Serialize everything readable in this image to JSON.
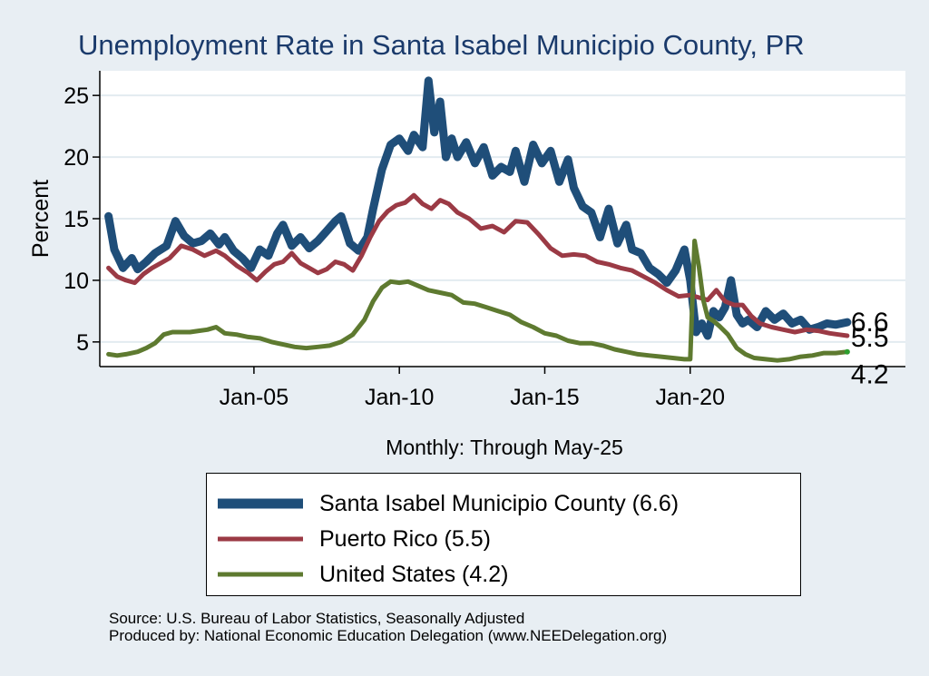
{
  "chart_data": {
    "type": "line",
    "title": "Unemployment Rate in Santa Isabel Municipio  County, PR",
    "ylabel": "Percent",
    "xlabel": "Monthly: Through May-25",
    "ylim": [
      3,
      27
    ],
    "yticks": [
      5,
      10,
      15,
      20,
      25
    ],
    "xticks": [
      {
        "label": "Jan-05",
        "x": 2005.0
      },
      {
        "label": "Jan-10",
        "x": 2010.0
      },
      {
        "label": "Jan-15",
        "x": 2015.0
      },
      {
        "label": "Jan-20",
        "x": 2020.0
      }
    ],
    "xlim": [
      1999.7,
      2027.4
    ],
    "grid": true,
    "series": [
      {
        "name": "Santa Isabel Municipio  County",
        "legend": "Santa Isabel Municipio  County (6.6)",
        "end_label": "6.6",
        "color": "#1f4e79",
        "x": [
          2000.0,
          2000.2,
          2000.5,
          2000.8,
          2001.0,
          2001.3,
          2001.6,
          2002.0,
          2002.3,
          2002.6,
          2002.9,
          2003.2,
          2003.5,
          2003.8,
          2004.0,
          2004.3,
          2004.6,
          2004.9,
          2005.2,
          2005.5,
          2005.8,
          2006.0,
          2006.3,
          2006.6,
          2006.9,
          2007.2,
          2007.5,
          2007.8,
          2008.0,
          2008.3,
          2008.6,
          2008.9,
          2009.1,
          2009.4,
          2009.7,
          2010.0,
          2010.3,
          2010.5,
          2010.8,
          2011.0,
          2011.2,
          2011.4,
          2011.6,
          2011.8,
          2012.0,
          2012.3,
          2012.6,
          2012.9,
          2013.2,
          2013.5,
          2013.8,
          2014.0,
          2014.3,
          2014.6,
          2014.9,
          2015.2,
          2015.5,
          2015.8,
          2016.0,
          2016.3,
          2016.6,
          2016.9,
          2017.2,
          2017.5,
          2017.8,
          2018.0,
          2018.3,
          2018.6,
          2018.9,
          2019.2,
          2019.5,
          2019.8,
          2020.0,
          2020.2,
          2020.4,
          2020.6,
          2020.8,
          2021.0,
          2021.2,
          2021.4,
          2021.6,
          2021.8,
          2022.0,
          2022.3,
          2022.6,
          2022.9,
          2023.2,
          2023.5,
          2023.8,
          2024.1,
          2024.4,
          2024.7,
          2025.0,
          2025.4
        ],
        "values": [
          15.2,
          12.5,
          11.0,
          11.8,
          10.9,
          11.5,
          12.2,
          12.8,
          14.8,
          13.6,
          13.0,
          13.2,
          13.8,
          12.9,
          13.5,
          12.4,
          11.8,
          11.0,
          12.5,
          12.0,
          13.8,
          14.5,
          12.8,
          13.5,
          12.6,
          13.2,
          14.0,
          14.8,
          15.2,
          13.0,
          12.4,
          13.5,
          15.8,
          19.0,
          21.0,
          21.5,
          20.5,
          21.8,
          20.8,
          26.2,
          22.0,
          24.5,
          20.0,
          21.5,
          20.0,
          21.2,
          19.5,
          20.8,
          18.5,
          19.2,
          18.8,
          20.5,
          18.0,
          21.0,
          19.5,
          20.5,
          18.0,
          19.8,
          17.5,
          16.0,
          15.5,
          13.5,
          15.8,
          13.0,
          14.5,
          12.5,
          12.2,
          11.0,
          10.5,
          9.8,
          10.8,
          12.5,
          10.0,
          5.8,
          6.5,
          5.5,
          7.5,
          7.0,
          7.8,
          10.0,
          7.2,
          6.5,
          6.8,
          6.2,
          7.5,
          6.8,
          7.3,
          6.5,
          6.8,
          6.0,
          6.2,
          6.5,
          6.4,
          6.6
        ]
      },
      {
        "name": "Puerto Rico",
        "legend": "Puerto Rico (5.5)",
        "end_label": "5.5",
        "color": "#9b3a45",
        "x": [
          2000.0,
          2000.3,
          2000.6,
          2000.9,
          2001.2,
          2001.5,
          2001.8,
          2002.1,
          2002.5,
          2002.9,
          2003.3,
          2003.7,
          2004.0,
          2004.4,
          2004.8,
          2005.1,
          2005.4,
          2005.7,
          2006.0,
          2006.3,
          2006.6,
          2006.9,
          2007.2,
          2007.5,
          2007.8,
          2008.1,
          2008.4,
          2008.7,
          2009.0,
          2009.3,
          2009.6,
          2009.9,
          2010.2,
          2010.5,
          2010.8,
          2011.1,
          2011.4,
          2011.7,
          2012.0,
          2012.4,
          2012.8,
          2013.2,
          2013.6,
          2014.0,
          2014.4,
          2014.8,
          2015.2,
          2015.6,
          2016.0,
          2016.4,
          2016.8,
          2017.2,
          2017.6,
          2018.0,
          2018.4,
          2018.8,
          2019.2,
          2019.6,
          2020.0,
          2020.3,
          2020.6,
          2020.9,
          2021.2,
          2021.5,
          2021.8,
          2022.1,
          2022.4,
          2022.8,
          2023.2,
          2023.6,
          2024.0,
          2024.4,
          2024.8,
          2025.1,
          2025.4
        ],
        "values": [
          11.0,
          10.3,
          10.0,
          9.8,
          10.5,
          11.0,
          11.4,
          11.8,
          12.8,
          12.5,
          12.0,
          12.4,
          12.0,
          11.2,
          10.6,
          10.0,
          10.7,
          11.3,
          11.5,
          12.2,
          11.4,
          11.0,
          10.6,
          10.9,
          11.5,
          11.3,
          10.8,
          12.0,
          13.5,
          14.8,
          15.6,
          16.1,
          16.3,
          16.9,
          16.2,
          15.8,
          16.5,
          16.2,
          15.5,
          15.0,
          14.2,
          14.4,
          13.9,
          14.8,
          14.7,
          13.7,
          12.6,
          12.0,
          12.1,
          12.0,
          11.5,
          11.3,
          11.0,
          10.8,
          10.3,
          9.8,
          9.2,
          8.7,
          8.8,
          8.6,
          8.4,
          9.2,
          8.3,
          8.0,
          8.0,
          7.1,
          6.5,
          6.2,
          6.0,
          5.8,
          6.0,
          5.9,
          5.7,
          5.6,
          5.5
        ]
      },
      {
        "name": "United States",
        "legend": "United States (4.2)",
        "end_label": "4.2",
        "color": "#5e7a30",
        "x": [
          2000.0,
          2000.3,
          2000.6,
          2001.0,
          2001.3,
          2001.6,
          2001.9,
          2002.2,
          2002.5,
          2002.8,
          2003.1,
          2003.4,
          2003.7,
          2004.0,
          2004.4,
          2004.8,
          2005.2,
          2005.6,
          2006.0,
          2006.4,
          2006.8,
          2007.2,
          2007.6,
          2008.0,
          2008.4,
          2008.8,
          2009.1,
          2009.4,
          2009.7,
          2010.0,
          2010.3,
          2010.7,
          2011.0,
          2011.4,
          2011.8,
          2012.2,
          2012.6,
          2013.0,
          2013.4,
          2013.8,
          2014.2,
          2014.6,
          2015.0,
          2015.4,
          2015.8,
          2016.2,
          2016.6,
          2017.0,
          2017.4,
          2017.8,
          2018.2,
          2018.6,
          2019.0,
          2019.4,
          2019.8,
          2020.0,
          2020.15,
          2020.3,
          2020.45,
          2020.6,
          2020.8,
          2021.0,
          2021.3,
          2021.6,
          2021.9,
          2022.2,
          2022.6,
          2023.0,
          2023.4,
          2023.8,
          2024.2,
          2024.6,
          2025.0,
          2025.4
        ],
        "values": [
          4.0,
          3.9,
          4.0,
          4.2,
          4.5,
          4.9,
          5.6,
          5.8,
          5.8,
          5.8,
          5.9,
          6.0,
          6.2,
          5.7,
          5.6,
          5.4,
          5.3,
          5.0,
          4.8,
          4.6,
          4.5,
          4.6,
          4.7,
          5.0,
          5.6,
          6.8,
          8.3,
          9.4,
          9.9,
          9.8,
          9.9,
          9.5,
          9.2,
          9.0,
          8.8,
          8.2,
          8.1,
          7.8,
          7.5,
          7.2,
          6.6,
          6.2,
          5.7,
          5.5,
          5.1,
          4.9,
          4.9,
          4.7,
          4.4,
          4.2,
          4.0,
          3.9,
          3.8,
          3.7,
          3.6,
          3.6,
          13.2,
          11.1,
          8.4,
          7.0,
          6.7,
          6.3,
          5.6,
          4.5,
          4.0,
          3.7,
          3.6,
          3.5,
          3.6,
          3.8,
          3.9,
          4.1,
          4.1,
          4.2
        ]
      }
    ]
  },
  "source_line": "Source: U.S. Bureau of Labor Statistics, Seasonally Adjusted",
  "produced_line": "Produced by: National Economic Education Delegation (www.NEEDelegation.org)"
}
